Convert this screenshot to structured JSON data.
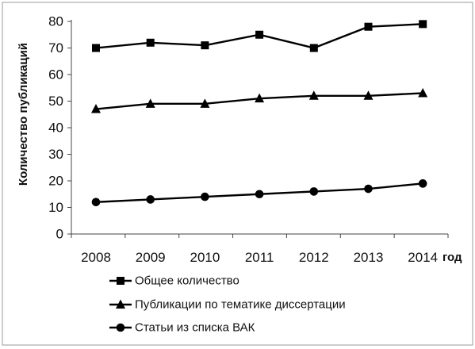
{
  "chart_data": {
    "type": "line",
    "xlabel": "год",
    "ylabel": "Количество публикаций",
    "ylim": [
      0,
      80
    ],
    "yticks": [
      "0",
      "10",
      "20",
      "30",
      "40",
      "50",
      "60",
      "70",
      "80"
    ],
    "x": [
      "2008",
      "2009",
      "2010",
      "2011",
      "2012",
      "2013",
      "2014"
    ],
    "grid": false,
    "legend_position": "bottom",
    "series": [
      {
        "name": "Общее количество",
        "marker": "square",
        "values": [
          70,
          72,
          71,
          75,
          70,
          78,
          79
        ]
      },
      {
        "name": "Публикации по тематике диссертации",
        "marker": "triangle",
        "values": [
          47,
          49,
          49,
          51,
          52,
          52,
          53
        ]
      },
      {
        "name": "Статьи из списка ВАК",
        "marker": "circle",
        "values": [
          12,
          13,
          14,
          15,
          16,
          17,
          19
        ]
      }
    ]
  }
}
